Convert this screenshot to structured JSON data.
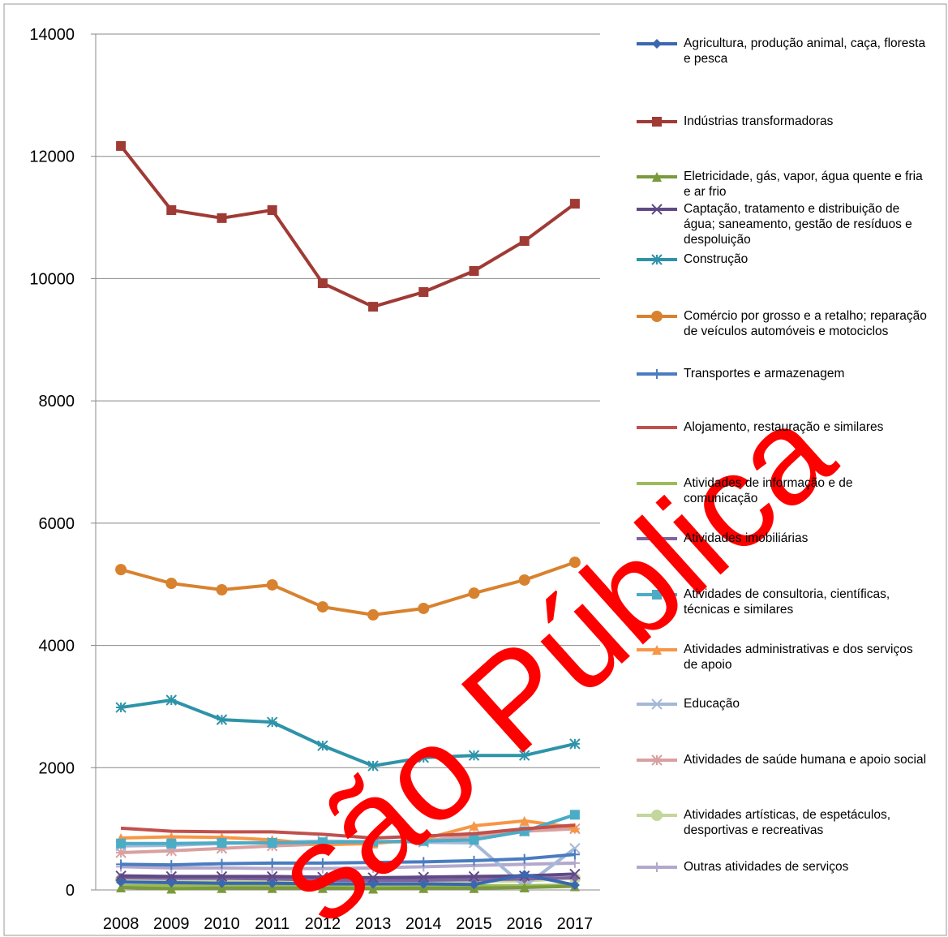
{
  "chart_data": {
    "type": "line",
    "categories": [
      "2008",
      "2009",
      "2010",
      "2011",
      "2012",
      "2013",
      "2014",
      "2015",
      "2016",
      "2017"
    ],
    "ylim": [
      0,
      14000
    ],
    "yticks": [
      0,
      2000,
      4000,
      6000,
      8000,
      10000,
      12000,
      14000
    ],
    "grid": true,
    "series": [
      {
        "name": "Agricultura, produção animal, caça, floresta e pesca",
        "color": "#3a67b0",
        "marker": "diamond",
        "values": [
          130,
          120,
          110,
          110,
          100,
          100,
          100,
          90,
          250,
          80
        ]
      },
      {
        "name": "Indústrias transformadoras",
        "color": "#a03a35",
        "marker": "square",
        "values": [
          12170,
          11120,
          10990,
          11120,
          9925,
          9540,
          9780,
          10125,
          10615,
          11225
        ]
      },
      {
        "name": "Eletricidade, gás, vapor, água quente e fria e ar frio",
        "color": "#7a9a3c",
        "marker": "triangle",
        "values": [
          40,
          20,
          30,
          30,
          30,
          20,
          30,
          30,
          40,
          60
        ]
      },
      {
        "name": "Captação, tratamento e distribuição de água; saneamento, gestão de resíduos e despoluição",
        "color": "#5f4a85",
        "marker": "x",
        "values": [
          230,
          220,
          220,
          220,
          210,
          200,
          210,
          220,
          230,
          260
        ]
      },
      {
        "name": "Construção",
        "color": "#2e93a8",
        "marker": "star",
        "values": [
          2985,
          3105,
          2785,
          2745,
          2360,
          2030,
          2165,
          2200,
          2200,
          2390
        ]
      },
      {
        "name": "Comércio por grosso e a retalho; reparação de veículos automóveis e motociclos",
        "color": "#d8822f",
        "marker": "circle",
        "values": [
          5240,
          5015,
          4910,
          4990,
          4630,
          4500,
          4605,
          4855,
          5070,
          5360
        ]
      },
      {
        "name": "Transportes e armazenagem",
        "color": "#4a7cc0",
        "marker": "plus",
        "values": [
          420,
          410,
          430,
          440,
          440,
          450,
          460,
          480,
          510,
          580
        ]
      },
      {
        "name": "Alojamento, restauração e similares",
        "color": "#c0504d",
        "marker": "none",
        "values": [
          1010,
          960,
          950,
          950,
          910,
          850,
          880,
          920,
          1000,
          1060
        ]
      },
      {
        "name": "Atividades de informação e de comunicação",
        "color": "#9bbb59",
        "marker": "none",
        "values": [
          70,
          70,
          60,
          60,
          60,
          60,
          60,
          70,
          70,
          80
        ]
      },
      {
        "name": "Atividades imobiliárias",
        "color": "#8064a2",
        "marker": "diamond",
        "values": [
          200,
          190,
          190,
          180,
          160,
          160,
          160,
          170,
          180,
          200
        ]
      },
      {
        "name": "Atividades de consultoria, científicas, técnicas e similares",
        "color": "#4bacc6",
        "marker": "square",
        "values": [
          760,
          760,
          770,
          770,
          780,
          790,
          800,
          820,
          960,
          1230
        ]
      },
      {
        "name": "Atividades administrativas e dos serviços de apoio",
        "color": "#f79646",
        "marker": "triangle",
        "values": [
          850,
          870,
          860,
          820,
          740,
          760,
          830,
          1050,
          1130,
          1020
        ]
      },
      {
        "name": "Educação",
        "color": "#a5b8d8",
        "marker": "x",
        "values": [
          720,
          730,
          760,
          780,
          800,
          790,
          780,
          770,
          60,
          680
        ]
      },
      {
        "name": "Atividades de saúde humana e apoio social",
        "color": "#d9a0a0",
        "marker": "star",
        "values": [
          610,
          640,
          680,
          720,
          750,
          780,
          810,
          880,
          960,
          1000
        ]
      },
      {
        "name": "Atividades artísticas, de espetáculos, desportivas e recreativas",
        "color": "#c3d69b",
        "marker": "circle",
        "values": [
          170,
          160,
          160,
          160,
          140,
          130,
          140,
          140,
          150,
          190
        ]
      },
      {
        "name": "Outras atividades de serviços",
        "color": "#b3a8cc",
        "marker": "plus",
        "values": [
          380,
          360,
          360,
          350,
          350,
          360,
          380,
          400,
          420,
          440
        ]
      }
    ],
    "annotation": "são Pública"
  }
}
